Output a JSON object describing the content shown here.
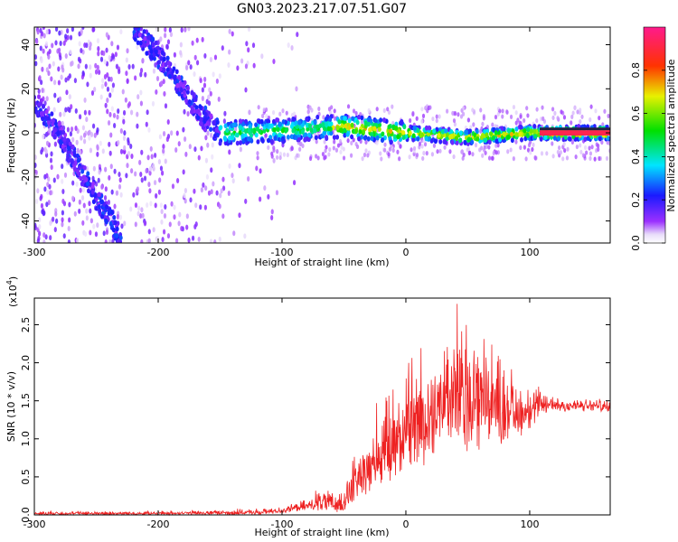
{
  "title": "GN03.2023.217.07.51.G07",
  "chart_data": [
    {
      "type": "heatmap",
      "xlabel": "Height of straight line (km)",
      "ylabel": "Frequency (Hz)",
      "xlim": [
        -300,
        165
      ],
      "ylim": [
        -50,
        48
      ],
      "xticks": [
        "-300",
        "-200",
        "-100",
        "0",
        "100"
      ],
      "yticks": [
        "-40",
        "-20",
        "0",
        "20",
        "40"
      ],
      "colorbar": {
        "label": "Normalized spectral amplitude",
        "range": [
          0.0,
          1.0
        ],
        "ticks": [
          "0.0",
          "0.2",
          "0.4",
          "0.6",
          "0.8"
        ]
      },
      "features": [
        {
          "x": [
            -300,
            -280,
            -260,
            -240,
            -230
          ],
          "y": [
            15,
            0,
            -20,
            -38,
            -48
          ]
        },
        {
          "x": [
            -220,
            -200,
            -180,
            -165,
            -150
          ],
          "y": [
            48,
            35,
            20,
            8,
            0
          ]
        },
        {
          "x": [
            -150,
            -100,
            -50,
            0,
            50,
            100,
            165
          ],
          "y": [
            0,
            1,
            3,
            0,
            -2,
            0,
            0
          ]
        }
      ]
    },
    {
      "type": "line",
      "xlabel": "Height of straight line (km)",
      "ylabel": "SNR (10 * v/v)",
      "yscale_note": "(x10",
      "yscale_exp": "4",
      "xlim": [
        -300,
        165
      ],
      "ylim": [
        0,
        2.85
      ],
      "xticks": [
        "-300",
        "-200",
        "-100",
        "0",
        "100"
      ],
      "yticks": [
        "0.0",
        "0.5",
        "1.0",
        "1.5",
        "2.0",
        "2.5"
      ],
      "color": "#ee2222",
      "envelope": {
        "x": [
          -300,
          -200,
          -120,
          -100,
          -80,
          -70,
          -60,
          -50,
          -40,
          -30,
          -20,
          -10,
          0,
          10,
          20,
          30,
          40,
          50,
          60,
          70,
          80,
          90,
          100,
          110,
          120,
          130,
          140,
          150,
          165
        ],
        "low": [
          0.0,
          0.0,
          0.0,
          0.02,
          0.05,
          0.05,
          0.02,
          0.05,
          0.15,
          0.25,
          0.35,
          0.4,
          0.5,
          0.6,
          0.7,
          0.8,
          0.8,
          0.8,
          0.8,
          0.9,
          0.9,
          1.0,
          1.1,
          1.3,
          1.35,
          1.35,
          1.35,
          1.35,
          1.35
        ],
        "high": [
          0.05,
          0.05,
          0.08,
          0.12,
          0.2,
          0.35,
          0.3,
          0.35,
          0.9,
          1.1,
          1.6,
          1.7,
          2.0,
          2.2,
          2.3,
          2.5,
          2.85,
          2.6,
          2.6,
          2.3,
          2.1,
          1.8,
          1.8,
          1.65,
          1.6,
          1.55,
          1.55,
          1.55,
          1.5
        ]
      }
    }
  ]
}
